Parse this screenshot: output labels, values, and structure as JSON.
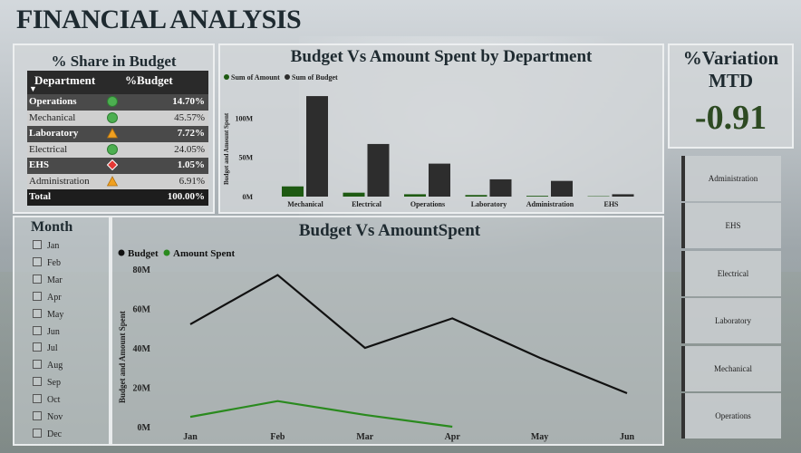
{
  "page": {
    "title": "FINANCIAL ANALYSIS"
  },
  "share": {
    "title": "% Share in Budget",
    "col_department": "Department",
    "col_budget": "%Budget",
    "rows": [
      {
        "name": "Operations",
        "indicator": "green-circle",
        "value": "14.70%"
      },
      {
        "name": "Mechanical",
        "indicator": "green-circle",
        "value": "45.57%"
      },
      {
        "name": "Laboratory",
        "indicator": "yellow-triangle",
        "value": "7.72%"
      },
      {
        "name": "Electrical",
        "indicator": "green-circle",
        "value": "24.05%"
      },
      {
        "name": "EHS",
        "indicator": "red-diamond",
        "value": "1.05%"
      },
      {
        "name": "Administration",
        "indicator": "yellow-triangle",
        "value": "6.91%"
      }
    ],
    "total_label": "Total",
    "total_value": "100.00%"
  },
  "variation": {
    "title_line1": "%Variation",
    "title_line2": "MTD",
    "value": "-0.91"
  },
  "slicer": {
    "items": [
      "Administration",
      "EHS",
      "Electrical",
      "Laboratory",
      "Mechanical",
      "Operations"
    ]
  },
  "month": {
    "title": "Month",
    "items": [
      "Jan",
      "Feb",
      "Mar",
      "Apr",
      "May",
      "Jun",
      "Jul",
      "Aug",
      "Sep",
      "Oct",
      "Nov",
      "Dec"
    ]
  },
  "colors": {
    "amount": "#1e5a12",
    "budget": "#2d2d2d",
    "line_amount": "#2a8a1e",
    "line_budget": "#111111",
    "variation": "#2d4a22"
  },
  "chart_data": [
    {
      "type": "bar",
      "title": "Budget Vs Amount Spent by Department",
      "xlabel": "",
      "ylabel": "Budget and Amount Spent",
      "categories": [
        "Mechanical",
        "Electrical",
        "Operations",
        "Laboratory",
        "Administration",
        "EHS"
      ],
      "series": [
        {
          "name": "Sum of Amount",
          "values": [
            13,
            5,
            3,
            2,
            1,
            0.5
          ]
        },
        {
          "name": "Sum of Budget",
          "values": [
            128,
            67,
            42,
            22,
            20,
            3
          ]
        }
      ],
      "yticks": [
        "0M",
        "50M",
        "100M"
      ],
      "ytick_values": [
        0,
        50,
        100
      ],
      "ylim": [
        0,
        135
      ],
      "legend": "top-left"
    },
    {
      "type": "line",
      "title": "Budget Vs AmountSpent",
      "xlabel": "",
      "ylabel": "Budget and Amount Spent",
      "x": [
        "Jan",
        "Feb",
        "Mar",
        "Apr",
        "May",
        "Jun"
      ],
      "series": [
        {
          "name": "Budget",
          "values": [
            52,
            77,
            40,
            55,
            35,
            17
          ]
        },
        {
          "name": "Amount Spent",
          "values": [
            5,
            13,
            6,
            0,
            null,
            null
          ]
        }
      ],
      "yticks": [
        "0M",
        "20M",
        "40M",
        "60M",
        "80M"
      ],
      "ytick_values": [
        0,
        20,
        40,
        60,
        80
      ],
      "ylim": [
        0,
        80
      ],
      "legend": "top-left"
    }
  ]
}
